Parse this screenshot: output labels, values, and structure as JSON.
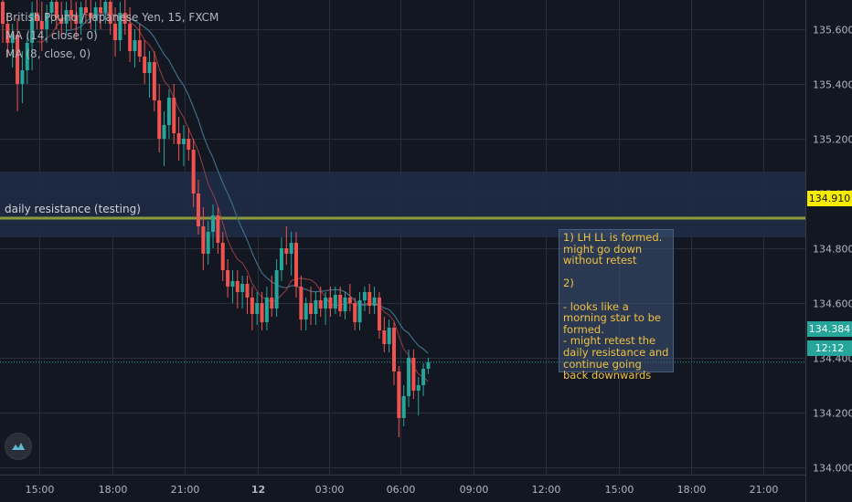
{
  "legend": {
    "symbol": "British Pound / Japanese Yen, 15, FXCM",
    "ma1": "MA (14, close, 0)",
    "ma2": "MA (8, close, 0)"
  },
  "zone_label": "daily resistance (testing)",
  "note": "1) LH LL is formed.\nmight go down without retest\n\n2)\n\n- looks like a morning star to be formed.\n- might retest the daily resistance and continue going back downwards",
  "price_tags": {
    "resistance": "134.910",
    "last": "134.384",
    "countdown": "12:12"
  },
  "colors": {
    "background": "#131722",
    "grid": "#2a2e39",
    "up": "#26a69a",
    "down": "#ef5350",
    "zone": "#1e2b44",
    "resistance_line": "#8b9a3a",
    "ma_line": "#3c6e86",
    "note_text": "#f0c243",
    "last_price": "#26a69a"
  },
  "chart_data": {
    "type": "candlestick",
    "title": "British Pound / Japanese Yen, 15, FXCM",
    "y_ticks": [
      134.0,
      134.2,
      134.4,
      134.6,
      134.8,
      135.0,
      135.2,
      135.4,
      135.6
    ],
    "x_ticks": [
      "15:00",
      "18:00",
      "21:00",
      "12",
      "03:00",
      "06:00",
      "09:00",
      "12:00",
      "15:00",
      "18:00",
      "21:00"
    ],
    "ylim": [
      133.82,
      135.72
    ],
    "resistance_zone": [
      134.84,
      135.08
    ],
    "resistance_level": 134.91,
    "last_price": 134.384,
    "candles": [
      {
        "o": 135.7,
        "h": 135.74,
        "l": 135.55,
        "c": 135.62
      },
      {
        "o": 135.62,
        "h": 135.66,
        "l": 135.5,
        "c": 135.55
      },
      {
        "o": 135.55,
        "h": 135.62,
        "l": 135.46,
        "c": 135.58
      },
      {
        "o": 135.58,
        "h": 135.64,
        "l": 135.3,
        "c": 135.4
      },
      {
        "o": 135.4,
        "h": 135.52,
        "l": 135.33,
        "c": 135.45
      },
      {
        "o": 135.45,
        "h": 135.58,
        "l": 135.4,
        "c": 135.55
      },
      {
        "o": 135.55,
        "h": 135.7,
        "l": 135.45,
        "c": 135.66
      },
      {
        "o": 135.66,
        "h": 135.72,
        "l": 135.6,
        "c": 135.63
      },
      {
        "o": 135.63,
        "h": 135.7,
        "l": 135.52,
        "c": 135.6
      },
      {
        "o": 135.6,
        "h": 135.69,
        "l": 135.55,
        "c": 135.66
      },
      {
        "o": 135.66,
        "h": 135.72,
        "l": 135.62,
        "c": 135.7
      },
      {
        "o": 135.7,
        "h": 135.72,
        "l": 135.6,
        "c": 135.64
      },
      {
        "o": 135.64,
        "h": 135.7,
        "l": 135.58,
        "c": 135.62
      },
      {
        "o": 135.62,
        "h": 135.7,
        "l": 135.58,
        "c": 135.67
      },
      {
        "o": 135.67,
        "h": 135.72,
        "l": 135.6,
        "c": 135.65
      },
      {
        "o": 135.65,
        "h": 135.7,
        "l": 135.56,
        "c": 135.62
      },
      {
        "o": 135.62,
        "h": 135.7,
        "l": 135.58,
        "c": 135.68
      },
      {
        "o": 135.68,
        "h": 135.72,
        "l": 135.62,
        "c": 135.66
      },
      {
        "o": 135.66,
        "h": 135.71,
        "l": 135.6,
        "c": 135.64
      },
      {
        "o": 135.64,
        "h": 135.7,
        "l": 135.58,
        "c": 135.68
      },
      {
        "o": 135.68,
        "h": 135.72,
        "l": 135.6,
        "c": 135.66
      },
      {
        "o": 135.66,
        "h": 135.72,
        "l": 135.62,
        "c": 135.7
      },
      {
        "o": 135.7,
        "h": 135.72,
        "l": 135.58,
        "c": 135.62
      },
      {
        "o": 135.62,
        "h": 135.68,
        "l": 135.5,
        "c": 135.56
      },
      {
        "o": 135.56,
        "h": 135.7,
        "l": 135.52,
        "c": 135.66
      },
      {
        "o": 135.66,
        "h": 135.72,
        "l": 135.58,
        "c": 135.62
      },
      {
        "o": 135.62,
        "h": 135.68,
        "l": 135.48,
        "c": 135.52
      },
      {
        "o": 135.52,
        "h": 135.6,
        "l": 135.46,
        "c": 135.56
      },
      {
        "o": 135.56,
        "h": 135.62,
        "l": 135.48,
        "c": 135.5
      },
      {
        "o": 135.5,
        "h": 135.56,
        "l": 135.4,
        "c": 135.44
      },
      {
        "o": 135.44,
        "h": 135.52,
        "l": 135.35,
        "c": 135.48
      },
      {
        "o": 135.48,
        "h": 135.52,
        "l": 135.3,
        "c": 135.34
      },
      {
        "o": 135.34,
        "h": 135.4,
        "l": 135.15,
        "c": 135.2
      },
      {
        "o": 135.2,
        "h": 135.3,
        "l": 135.1,
        "c": 135.25
      },
      {
        "o": 135.25,
        "h": 135.38,
        "l": 135.2,
        "c": 135.35
      },
      {
        "o": 135.35,
        "h": 135.4,
        "l": 135.18,
        "c": 135.22
      },
      {
        "o": 135.22,
        "h": 135.28,
        "l": 135.12,
        "c": 135.18
      },
      {
        "o": 135.18,
        "h": 135.25,
        "l": 135.1,
        "c": 135.2
      },
      {
        "o": 135.2,
        "h": 135.24,
        "l": 135.12,
        "c": 135.16
      },
      {
        "o": 135.16,
        "h": 135.2,
        "l": 134.95,
        "c": 135.0
      },
      {
        "o": 135.0,
        "h": 135.05,
        "l": 134.85,
        "c": 134.88
      },
      {
        "o": 134.88,
        "h": 134.95,
        "l": 134.72,
        "c": 134.78
      },
      {
        "o": 134.78,
        "h": 134.9,
        "l": 134.74,
        "c": 134.86
      },
      {
        "o": 134.86,
        "h": 134.96,
        "l": 134.8,
        "c": 134.92
      },
      {
        "o": 134.92,
        "h": 134.95,
        "l": 134.78,
        "c": 134.82
      },
      {
        "o": 134.82,
        "h": 134.86,
        "l": 134.68,
        "c": 134.72
      },
      {
        "o": 134.72,
        "h": 134.76,
        "l": 134.62,
        "c": 134.66
      },
      {
        "o": 134.66,
        "h": 134.72,
        "l": 134.6,
        "c": 134.68
      },
      {
        "o": 134.68,
        "h": 134.72,
        "l": 134.58,
        "c": 134.64
      },
      {
        "o": 134.64,
        "h": 134.7,
        "l": 134.58,
        "c": 134.67
      },
      {
        "o": 134.67,
        "h": 134.7,
        "l": 134.56,
        "c": 134.62
      },
      {
        "o": 134.62,
        "h": 134.66,
        "l": 134.5,
        "c": 134.56
      },
      {
        "o": 134.56,
        "h": 134.64,
        "l": 134.52,
        "c": 134.6
      },
      {
        "o": 134.6,
        "h": 134.64,
        "l": 134.5,
        "c": 134.53
      },
      {
        "o": 134.53,
        "h": 134.66,
        "l": 134.5,
        "c": 134.62
      },
      {
        "o": 134.62,
        "h": 134.7,
        "l": 134.55,
        "c": 134.58
      },
      {
        "o": 134.58,
        "h": 134.76,
        "l": 134.55,
        "c": 134.72
      },
      {
        "o": 134.72,
        "h": 134.84,
        "l": 134.68,
        "c": 134.8
      },
      {
        "o": 134.8,
        "h": 134.88,
        "l": 134.74,
        "c": 134.78
      },
      {
        "o": 134.78,
        "h": 134.86,
        "l": 134.7,
        "c": 134.82
      },
      {
        "o": 134.82,
        "h": 134.86,
        "l": 134.62,
        "c": 134.66
      },
      {
        "o": 134.66,
        "h": 134.7,
        "l": 134.5,
        "c": 134.54
      },
      {
        "o": 134.54,
        "h": 134.62,
        "l": 134.5,
        "c": 134.6
      },
      {
        "o": 134.6,
        "h": 134.66,
        "l": 134.52,
        "c": 134.56
      },
      {
        "o": 134.56,
        "h": 134.64,
        "l": 134.52,
        "c": 134.61
      },
      {
        "o": 134.61,
        "h": 134.66,
        "l": 134.55,
        "c": 134.58
      },
      {
        "o": 134.58,
        "h": 134.64,
        "l": 134.52,
        "c": 134.62
      },
      {
        "o": 134.62,
        "h": 134.66,
        "l": 134.55,
        "c": 134.58
      },
      {
        "o": 134.58,
        "h": 134.66,
        "l": 134.56,
        "c": 134.63
      },
      {
        "o": 134.63,
        "h": 134.66,
        "l": 134.55,
        "c": 134.57
      },
      {
        "o": 134.57,
        "h": 134.64,
        "l": 134.54,
        "c": 134.62
      },
      {
        "o": 134.62,
        "h": 134.67,
        "l": 134.57,
        "c": 134.6
      },
      {
        "o": 134.6,
        "h": 134.62,
        "l": 134.5,
        "c": 134.53
      },
      {
        "o": 134.53,
        "h": 134.64,
        "l": 134.5,
        "c": 134.61
      },
      {
        "o": 134.61,
        "h": 134.66,
        "l": 134.57,
        "c": 134.64
      },
      {
        "o": 134.64,
        "h": 134.67,
        "l": 134.56,
        "c": 134.59
      },
      {
        "o": 134.59,
        "h": 134.66,
        "l": 134.56,
        "c": 134.62
      },
      {
        "o": 134.62,
        "h": 134.64,
        "l": 134.47,
        "c": 134.5
      },
      {
        "o": 134.5,
        "h": 134.55,
        "l": 134.42,
        "c": 134.45
      },
      {
        "o": 134.45,
        "h": 134.54,
        "l": 134.42,
        "c": 134.51
      },
      {
        "o": 134.51,
        "h": 134.53,
        "l": 134.3,
        "c": 134.35
      },
      {
        "o": 134.35,
        "h": 134.37,
        "l": 134.11,
        "c": 134.18
      },
      {
        "o": 134.18,
        "h": 134.3,
        "l": 134.15,
        "c": 134.26
      },
      {
        "o": 134.26,
        "h": 134.43,
        "l": 134.22,
        "c": 134.4
      },
      {
        "o": 134.4,
        "h": 134.43,
        "l": 134.25,
        "c": 134.28
      },
      {
        "o": 134.28,
        "h": 134.33,
        "l": 134.19,
        "c": 134.3
      },
      {
        "o": 134.3,
        "h": 134.38,
        "l": 134.26,
        "c": 134.36
      },
      {
        "o": 134.36,
        "h": 134.4,
        "l": 134.34,
        "c": 134.384
      }
    ]
  }
}
